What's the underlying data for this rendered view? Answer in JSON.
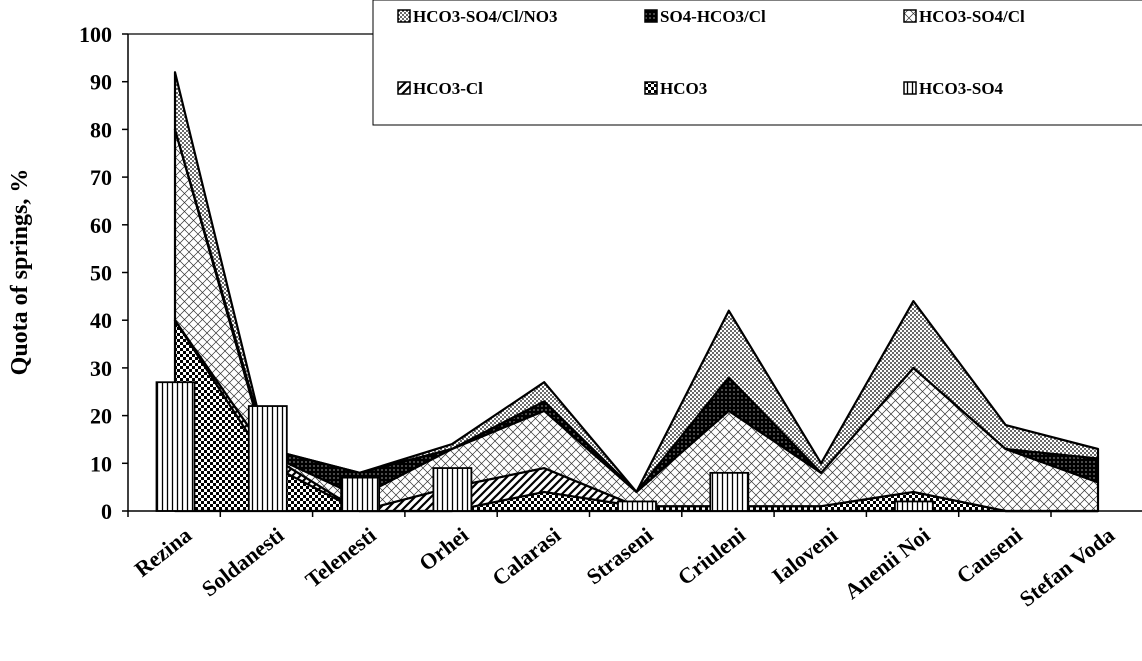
{
  "chart_data": {
    "type": "area",
    "ylabel": "Quota of springs, %",
    "ylim": [
      0,
      100
    ],
    "yticks": [
      0,
      10,
      20,
      30,
      40,
      50,
      60,
      70,
      80,
      90,
      100
    ],
    "categories": [
      "Rezina",
      "Soldanesti",
      "Telenesti",
      "Orhei",
      "Calarasi",
      "Straseni",
      "Criuleni",
      "Ialoveni",
      "Anenii Noi",
      "Causeni",
      "Stefan Voda"
    ],
    "legend_position": "top-right",
    "series": [
      {
        "name": "HCO3-SO4",
        "render": "bar",
        "pattern": "vlines",
        "values": [
          27,
          22,
          7,
          9,
          0,
          2,
          8,
          0,
          2,
          0,
          0
        ]
      },
      {
        "name": "HCO3",
        "render": "area",
        "pattern": "checker",
        "values": [
          40,
          10,
          0,
          0,
          4,
          1,
          1,
          1,
          4,
          0,
          0
        ]
      },
      {
        "name": "HCO3-Cl",
        "render": "area",
        "pattern": "hatch",
        "values": [
          0,
          2,
          0,
          5,
          5,
          0,
          0,
          0,
          0,
          0,
          0
        ]
      },
      {
        "name": "HCO3-SO4/Cl",
        "render": "area",
        "pattern": "crosshatch",
        "values": [
          40,
          0,
          3,
          8,
          12,
          3,
          20,
          7,
          26,
          13,
          6
        ]
      },
      {
        "name": "SO4-HCO3/Cl",
        "render": "area",
        "pattern": "solid",
        "values": [
          0,
          1,
          5,
          0,
          2,
          0,
          7,
          0,
          0,
          0,
          5
        ]
      },
      {
        "name": "HCO3-SO4/Cl/NO3",
        "render": "area",
        "pattern": "dots",
        "values": [
          12,
          0,
          0,
          1,
          4,
          0,
          14,
          2,
          14,
          5,
          2
        ]
      }
    ]
  }
}
